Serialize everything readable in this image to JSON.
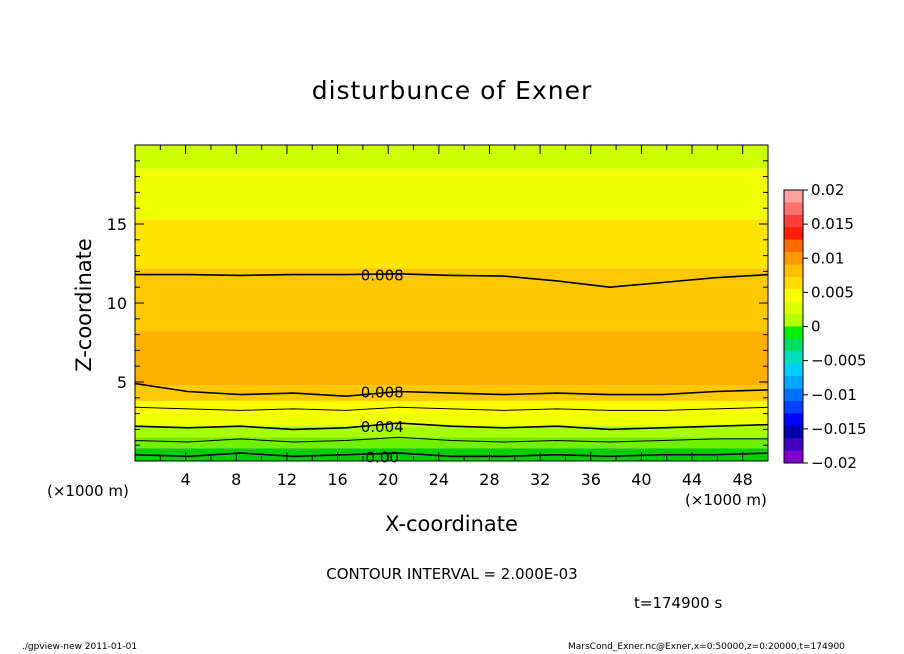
{
  "title": "disturbunce of Exner",
  "footer": {
    "left": "./gpview-new   2011-01-01",
    "right": "MarsCond_Exner.nc@Exner,x=0:50000,z=0:20000,t=174900"
  },
  "time_label": "t=174900 s",
  "contour_interval_label": "CONTOUR INTERVAL = 2.000E-03",
  "chart_data": {
    "type": "heatmap",
    "title": "disturbunce of Exner",
    "xlabel": "X-coordinate",
    "ylabel": "Z-coordinate",
    "x_unit": "(×1000 m)",
    "z_unit": "(×1000 m)",
    "xlim": [
      0,
      50
    ],
    "ylim": [
      0,
      20
    ],
    "x_ticks": [
      4,
      8,
      12,
      16,
      20,
      24,
      28,
      32,
      36,
      40,
      44,
      48
    ],
    "y_ticks": [
      5,
      10,
      15
    ],
    "colorbar": {
      "placement": "right",
      "tick_labels": [
        "0.02",
        "0.015",
        "0.01",
        "0.005",
        "0",
        "−0.005",
        "−0.01",
        "−0.015",
        "−0.02"
      ],
      "levels": [
        0.02,
        0.0175,
        0.015,
        0.0125,
        0.01,
        0.0075,
        0.005,
        0.0025,
        0,
        -0.0025,
        -0.005,
        -0.0075,
        -0.01,
        -0.0125,
        -0.015,
        -0.0175,
        -0.02
      ],
      "colors": [
        "#ffa0a0",
        "#ff7070",
        "#ff3c3c",
        "#ff2000",
        "#ff6a00",
        "#ff9800",
        "#ffbe00",
        "#ffdc00",
        "#ffff00",
        "#ddff00",
        "#b4ff00",
        "#00ee00",
        "#00dd66",
        "#00ddbb",
        "#00ccff",
        "#00a8ff",
        "#0070ff",
        "#0040ff",
        "#0000ff",
        "#0000aa",
        "#4000c0",
        "#8000cc"
      ]
    },
    "contour_interval": 0.002,
    "contour_labels": [
      {
        "value": "0.008",
        "x": 20,
        "z": 11.8
      },
      {
        "value": "0.008",
        "x": 20,
        "z": 4.4
      },
      {
        "value": "0.004",
        "x": 20,
        "z": 2.2
      },
      {
        "value": "0.00",
        "x": 20,
        "z": 0.3
      }
    ],
    "field_bands": [
      {
        "z_bottom": 18.5,
        "z_top": 20,
        "value": 0.0035
      },
      {
        "z_bottom": 15.3,
        "z_top": 18.5,
        "value": 0.005
      },
      {
        "z_bottom": 12.2,
        "z_top": 15.3,
        "value": 0.0065
      },
      {
        "z_bottom": 8.2,
        "z_top": 12.2,
        "value": 0.0075
      },
      {
        "z_bottom": 4.8,
        "z_top": 8.2,
        "value": 0.0085
      },
      {
        "z_bottom": 3.8,
        "z_top": 4.8,
        "value": 0.0075
      },
      {
        "z_bottom": 3.0,
        "z_top": 3.8,
        "value": 0.006
      },
      {
        "z_bottom": 2.2,
        "z_top": 3.0,
        "value": 0.0045
      },
      {
        "z_bottom": 1.5,
        "z_top": 2.2,
        "value": 0.003
      },
      {
        "z_bottom": 0.8,
        "z_top": 1.5,
        "value": 0.0015
      },
      {
        "z_bottom": 0,
        "z_top": 0.8,
        "value": 0.0
      }
    ],
    "contour_lines": [
      {
        "value": 0.008,
        "z": [
          11.8,
          11.8,
          11.75,
          11.8,
          11.8,
          11.85,
          11.75,
          11.7,
          11.4,
          11.0,
          11.3,
          11.6,
          11.8
        ]
      },
      {
        "value": 0.008,
        "z": [
          4.9,
          4.4,
          4.2,
          4.3,
          4.1,
          4.4,
          4.3,
          4.2,
          4.3,
          4.2,
          4.2,
          4.4,
          4.5
        ]
      },
      {
        "value": 0.006,
        "z": [
          3.4,
          3.3,
          3.2,
          3.3,
          3.2,
          3.4,
          3.3,
          3.2,
          3.3,
          3.2,
          3.2,
          3.3,
          3.4
        ]
      },
      {
        "value": 0.004,
        "z": [
          2.2,
          2.1,
          2.2,
          2.0,
          2.1,
          2.4,
          2.2,
          2.1,
          2.2,
          2.0,
          2.1,
          2.2,
          2.3
        ]
      },
      {
        "value": 0.002,
        "z": [
          1.3,
          1.2,
          1.4,
          1.2,
          1.3,
          1.5,
          1.3,
          1.2,
          1.3,
          1.2,
          1.3,
          1.4,
          1.4
        ]
      },
      {
        "value": 0.0,
        "z": [
          0.4,
          0.3,
          0.5,
          0.3,
          0.4,
          0.5,
          0.3,
          0.3,
          0.4,
          0.3,
          0.4,
          0.4,
          0.5
        ]
      }
    ],
    "warm_regions": [
      {
        "x_min": 0.5,
        "x_max": 41.5,
        "z_min": 5.2,
        "z_max": 8.0,
        "value": 0.009
      },
      {
        "x_min": 43,
        "x_max": 50,
        "z_min": 5.2,
        "z_max": 8.0,
        "value": 0.009
      }
    ]
  }
}
